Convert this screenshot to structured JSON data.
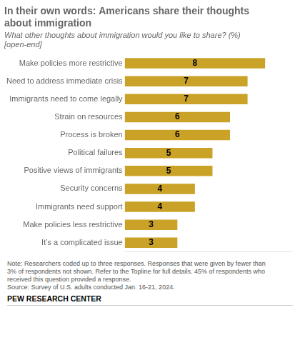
{
  "chart_data": {
    "type": "bar",
    "orientation": "horizontal",
    "title": [
      "In their own words: Americans share their thoughts",
      "about immigration"
    ],
    "subtitle": [
      "What other thoughts about immigration would you like to share? (%)",
      "[open-end]"
    ],
    "categories": [
      "Make policies more restrictive",
      "Need to address immediate crisis",
      "Immigrants need to come legally",
      "Strain on resources",
      "Process is broken",
      "Political failures",
      "Positive views of immigrants",
      "Security concerns",
      "Immigrants need support",
      "Make policies less restrictive",
      "It’s a complicated issue"
    ],
    "values": [
      8,
      7,
      7,
      6,
      6,
      5,
      5,
      4,
      4,
      3,
      3
    ],
    "color": "#C9A227",
    "xlim": [
      0,
      9.5
    ],
    "grid": false,
    "data_labels": true,
    "tick_labels": "y",
    "annotations": [
      "Note: Researchers coded up to three responses. Responses that were given by fewer than",
      "3% of respondents not shown. Refer to the Topline for full details. 45% of respondents who",
      "received this question provided a response.",
      "Source: Survey of U.S. adults conducted Jan. 16-21, 2024."
    ],
    "source": "PEW RESEARCH CENTER"
  }
}
